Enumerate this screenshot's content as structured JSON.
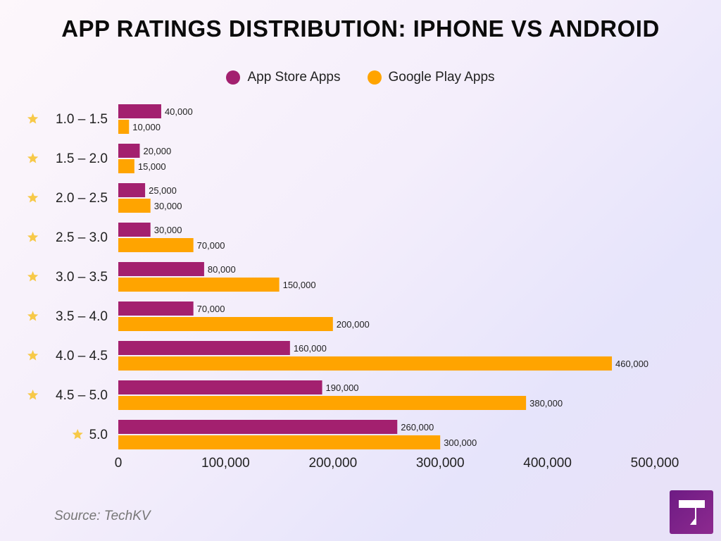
{
  "title": "APP RATINGS DISTRIBUTION: IPHONE VS ANDROID",
  "source": "Source: TechKV",
  "logo_icon": "techkv-logo-icon",
  "star_icon": "star-icon",
  "colors": {
    "app_store": "#a3206f",
    "google_play": "#ffa400",
    "star": "#f7c948",
    "text": "#222222"
  },
  "legend": [
    {
      "label": "App Store Apps",
      "color": "#a3206f"
    },
    {
      "label": "Google Play Apps",
      "color": "#ffa400"
    }
  ],
  "chart_data": {
    "type": "bar",
    "orientation": "horizontal",
    "categories": [
      "1.0 – 1.5",
      "1.5 – 2.0",
      "2.0 – 2.5",
      "2.5 – 3.0",
      "3.0 – 3.5",
      "3.5 – 4.0",
      "4.0 – 4.5",
      "4.5 – 5.0",
      "5.0"
    ],
    "series": [
      {
        "name": "App Store Apps",
        "values": [
          40000,
          20000,
          25000,
          30000,
          80000,
          70000,
          160000,
          190000,
          260000
        ],
        "value_labels": [
          "40,000",
          "20,000",
          "25,000",
          "30,000",
          "80,000",
          "70,000",
          "160,000",
          "190,000",
          "260,000"
        ]
      },
      {
        "name": "Google Play Apps",
        "values": [
          10000,
          15000,
          30000,
          70000,
          150000,
          200000,
          460000,
          380000,
          300000
        ],
        "value_labels": [
          "10,000",
          "15,000",
          "30,000",
          "70,000",
          "150,000",
          "200,000",
          "460,000",
          "380,000",
          "300,000"
        ]
      }
    ],
    "xlim": [
      0,
      500000
    ],
    "xticks": [
      0,
      100000,
      200000,
      300000,
      400000,
      500000
    ],
    "xtick_labels": [
      "0",
      "100,000",
      "200,000",
      "300,000",
      "400,000",
      "500,000"
    ],
    "grid": false,
    "legend_position": "top-center"
  }
}
